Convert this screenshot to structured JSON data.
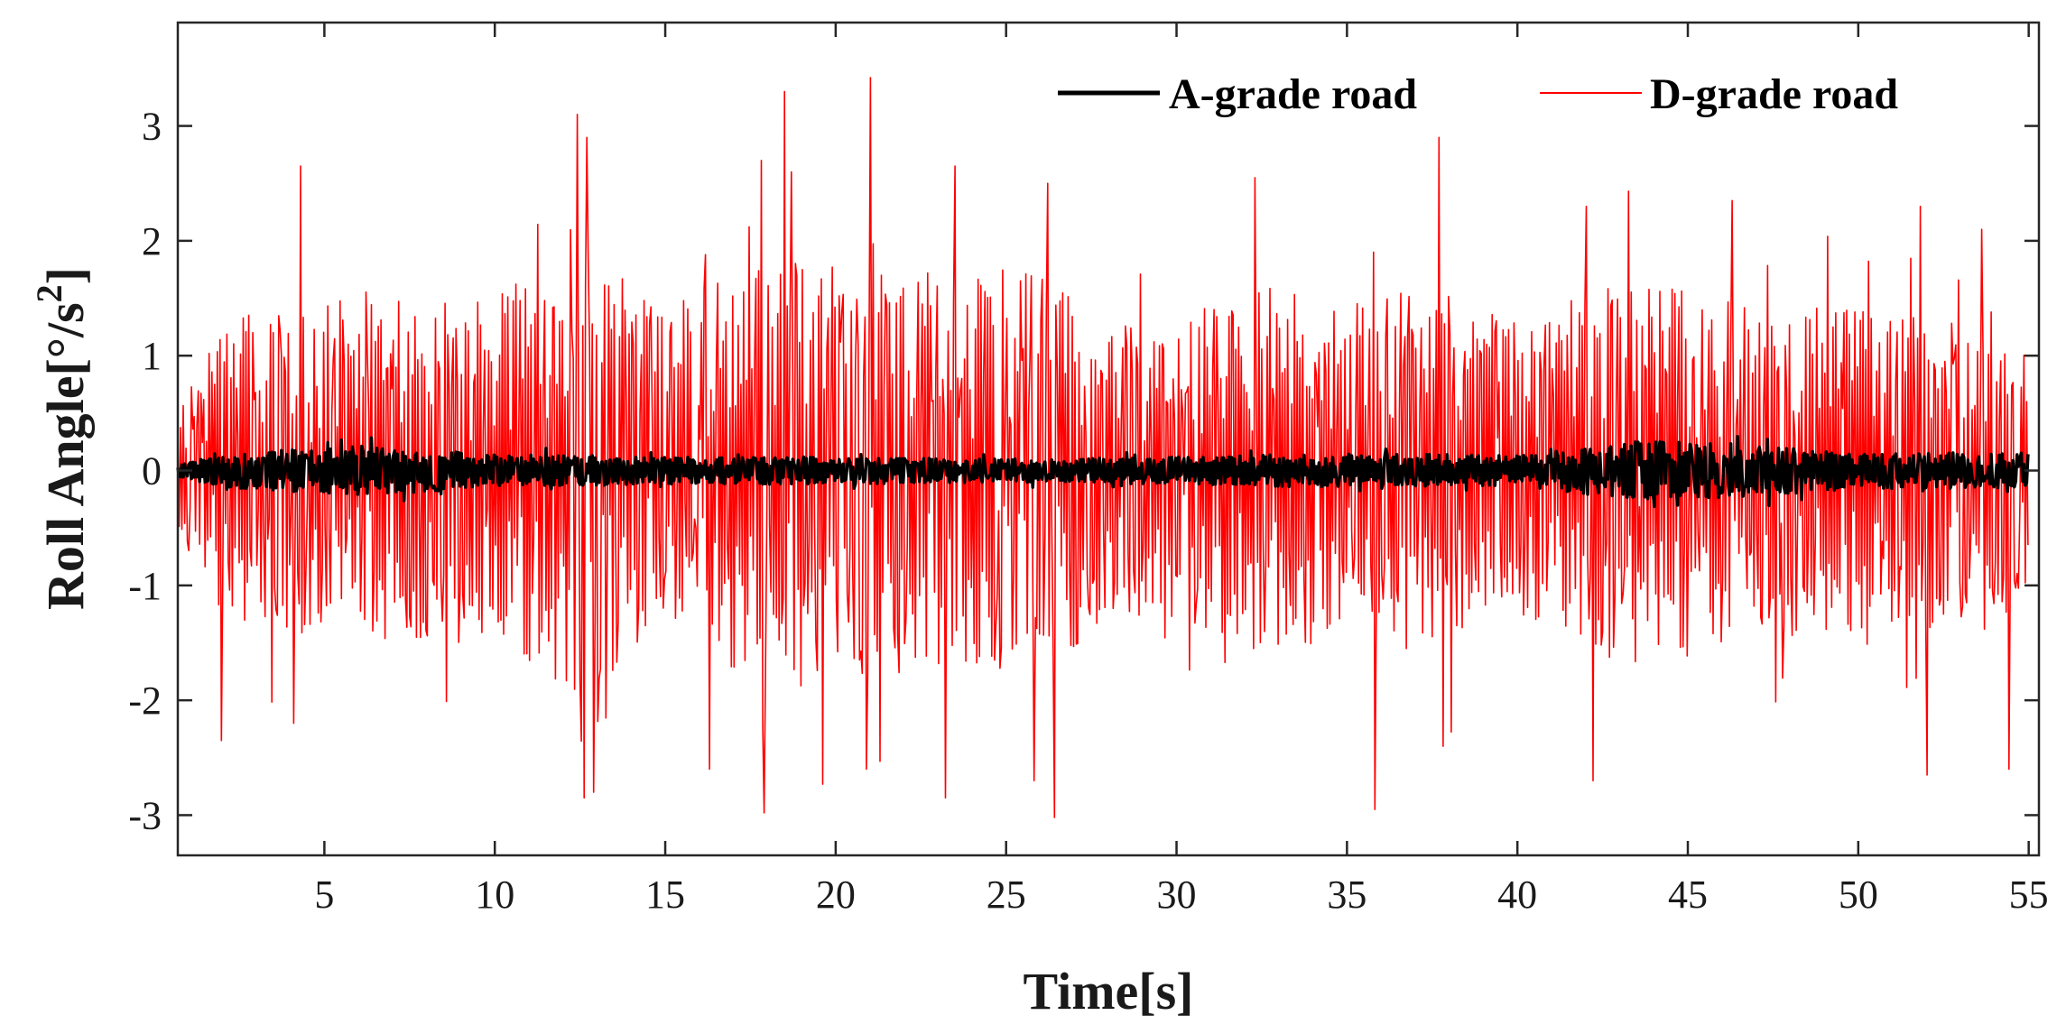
{
  "chart_data": {
    "type": "line",
    "xlabel": "Time[s]",
    "ylabel_main": "Roll Angle[°/s",
    "ylabel_sup": "2",
    "ylabel_close": "]",
    "xlim": [
      0.7,
      55.3
    ],
    "ylim": [
      -3.35,
      3.9
    ],
    "xticks": [
      5,
      10,
      15,
      20,
      25,
      30,
      35,
      40,
      45,
      50,
      55
    ],
    "xtick_labels": [
      "5",
      "10",
      "15",
      "20",
      "25",
      "30",
      "35",
      "40",
      "45",
      "50",
      "55"
    ],
    "yticks": [
      -3,
      -2,
      -1,
      0,
      1,
      2,
      3
    ],
    "ytick_labels": [
      "-3",
      "-2",
      "-1",
      "0",
      "1",
      "2",
      "3"
    ],
    "grid": false,
    "legend_position": "top-right",
    "series": [
      {
        "name": "A-grade road",
        "color": "#000000",
        "linewidth": "thick",
        "x_start": 0.7,
        "x_end": 55.0,
        "sample_step": 0.04,
        "amplitude_envelope": [
          [
            0.7,
            0.05
          ],
          [
            2.0,
            0.15
          ],
          [
            6.5,
            0.22
          ],
          [
            10,
            0.14
          ],
          [
            15,
            0.12
          ],
          [
            20,
            0.12
          ],
          [
            25,
            0.1
          ],
          [
            30,
            0.12
          ],
          [
            35,
            0.15
          ],
          [
            40,
            0.13
          ],
          [
            44,
            0.28
          ],
          [
            50,
            0.16
          ],
          [
            55,
            0.15
          ]
        ],
        "peaks": []
      },
      {
        "name": "D-grade road",
        "color": "#ff0000",
        "linewidth": "thin",
        "x_start": 0.7,
        "x_end": 55.0,
        "sample_step": 0.04,
        "amplitude_envelope": [
          [
            0.7,
            0.5
          ],
          [
            2,
            1.3
          ],
          [
            5,
            1.5
          ],
          [
            10,
            1.5
          ],
          [
            12.5,
            2.0
          ],
          [
            15,
            1.4
          ],
          [
            18,
            1.9
          ],
          [
            20,
            1.9
          ],
          [
            23,
            1.7
          ],
          [
            26,
            1.8
          ],
          [
            28,
            1.3
          ],
          [
            30,
            1.3
          ],
          [
            32.5,
            1.7
          ],
          [
            35,
            1.5
          ],
          [
            38,
            1.6
          ],
          [
            40,
            1.3
          ],
          [
            43,
            1.7
          ],
          [
            46,
            1.5
          ],
          [
            50,
            1.4
          ],
          [
            54,
            1.4
          ],
          [
            55,
            1.0
          ]
        ],
        "peaks": [
          [
            4.3,
            2.65
          ],
          [
            4.1,
            -2.2
          ],
          [
            2.0,
            -2.35
          ],
          [
            12.4,
            3.1
          ],
          [
            12.7,
            2.9
          ],
          [
            12.6,
            -2.85
          ],
          [
            12.9,
            -2.8
          ],
          [
            18.5,
            3.3
          ],
          [
            17.8,
            2.7
          ],
          [
            17.9,
            -2.98
          ],
          [
            18.7,
            2.6
          ],
          [
            21.0,
            3.42
          ],
          [
            20.9,
            -2.6
          ],
          [
            23.2,
            -2.85
          ],
          [
            23.5,
            2.65
          ],
          [
            26.4,
            -3.02
          ],
          [
            26.2,
            2.5
          ],
          [
            25.8,
            -2.7
          ],
          [
            32.3,
            2.55
          ],
          [
            35.8,
            -2.95
          ],
          [
            37.7,
            2.9
          ],
          [
            37.8,
            -2.4
          ],
          [
            42.2,
            -2.7
          ],
          [
            42.0,
            2.3
          ],
          [
            46.3,
            2.35
          ],
          [
            51.8,
            2.3
          ],
          [
            52.0,
            -2.65
          ],
          [
            53.6,
            2.1
          ],
          [
            54.4,
            -2.6
          ],
          [
            16.3,
            -2.6
          ]
        ]
      }
    ]
  }
}
